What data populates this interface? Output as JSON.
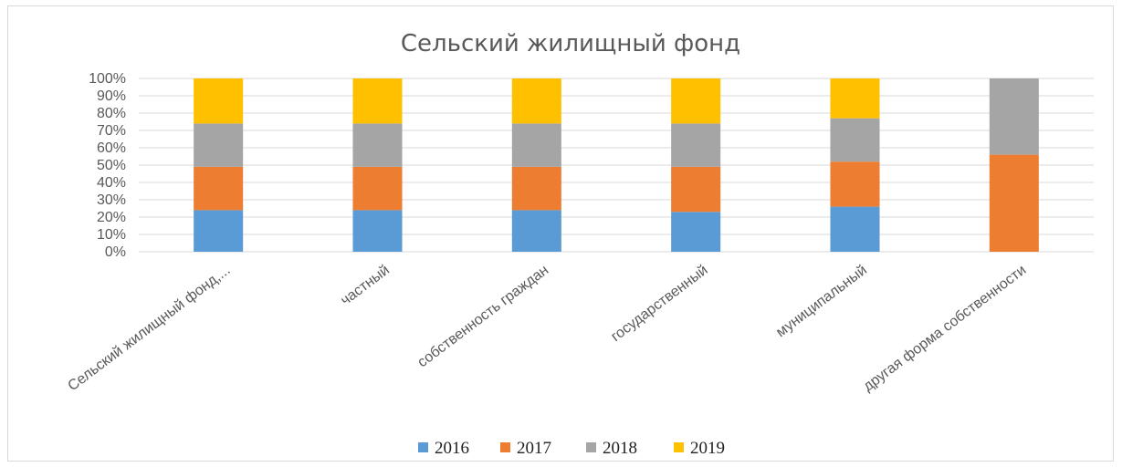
{
  "chart_data": {
    "type": "bar",
    "stacked": "percent",
    "title": "Сельский жилищный фонд",
    "categories": [
      "Сельский жилищный фонд,...",
      "частный",
      "собственность граждан",
      "государственный",
      "муниципальный",
      "другая форма собственности"
    ],
    "series": [
      {
        "name": "2016",
        "color": "#5b9bd5",
        "values": [
          24,
          24,
          24,
          23,
          26,
          0
        ]
      },
      {
        "name": "2017",
        "color": "#ed7d31",
        "values": [
          25,
          25,
          25,
          26,
          26,
          56
        ]
      },
      {
        "name": "2018",
        "color": "#a5a5a5",
        "values": [
          25,
          25,
          25,
          25,
          25,
          44
        ]
      },
      {
        "name": "2019",
        "color": "#ffc000",
        "values": [
          26,
          26,
          26,
          26,
          23,
          0
        ]
      }
    ],
    "yticks": [
      "0%",
      "10%",
      "20%",
      "30%",
      "40%",
      "50%",
      "60%",
      "70%",
      "80%",
      "90%",
      "100%"
    ],
    "ylim": [
      0,
      100
    ],
    "grid": true,
    "legend": "bottom"
  }
}
